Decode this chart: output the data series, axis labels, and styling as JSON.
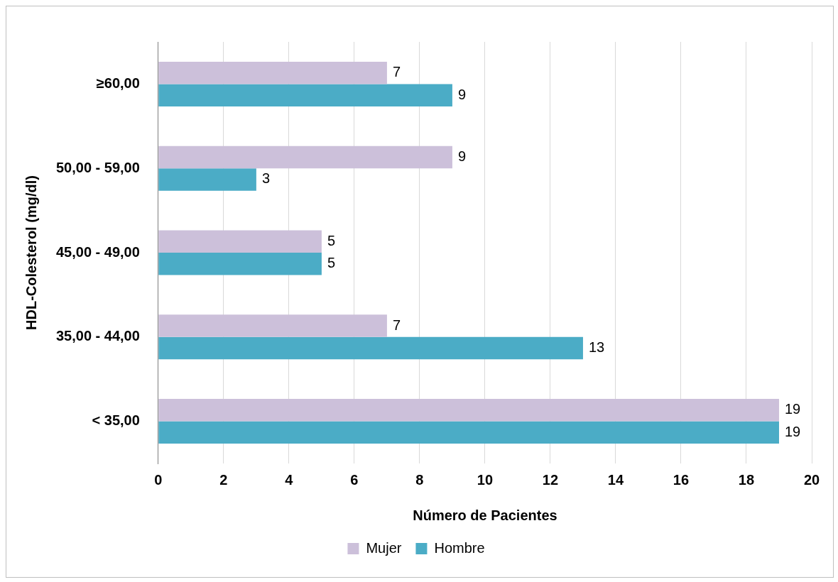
{
  "chart_data": {
    "type": "bar",
    "orientation": "horizontal",
    "xlabel": "Número de Pacientes",
    "ylabel": "HDL-Colesterol (mg/dl)",
    "categories": [
      "≥60,00",
      "50,00 - 59,00",
      "45,00 - 49,00",
      "35,00 - 44,00",
      "< 35,00"
    ],
    "series": [
      {
        "name": "Mujer",
        "color": "#ccc0da",
        "values": [
          7,
          9,
          5,
          7,
          19
        ]
      },
      {
        "name": "Hombre",
        "color": "#4bacc6",
        "values": [
          9,
          3,
          5,
          13,
          19
        ]
      }
    ],
    "xlim": [
      0,
      20
    ],
    "xticks": [
      0,
      2,
      4,
      6,
      8,
      10,
      12,
      14,
      16,
      18,
      20
    ],
    "grid": "x",
    "legend": "bottom",
    "data_labels": true
  }
}
